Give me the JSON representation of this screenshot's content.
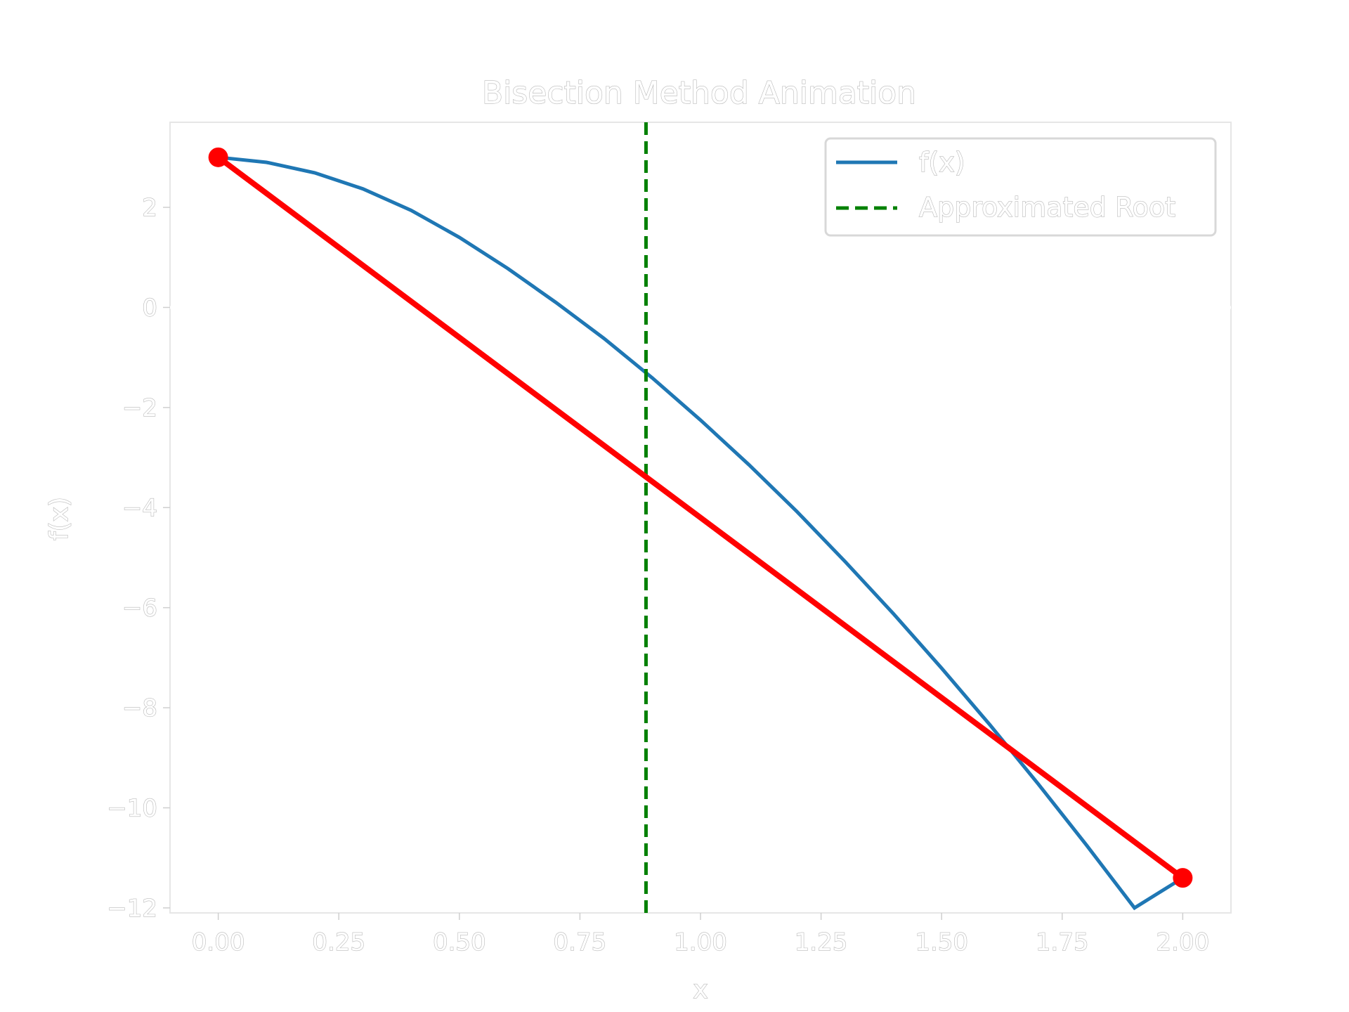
{
  "chart_data": {
    "type": "line",
    "title": "Bisection Method Animation",
    "xlabel": "x",
    "ylabel": "f(x)",
    "xlim": [
      -0.1,
      2.1
    ],
    "ylim": [
      -12.1,
      3.7
    ],
    "xticks": [
      "0.00",
      "0.25",
      "0.50",
      "0.75",
      "1.00",
      "1.25",
      "1.50",
      "1.75",
      "2.00"
    ],
    "yticks": [
      "2",
      "0",
      "−2",
      "−4",
      "−6",
      "−8",
      "−10",
      "−12"
    ],
    "grid": false,
    "legend_position": "top-right",
    "series": [
      {
        "name": "f(x)",
        "color": "#1f77b4",
        "style": "solid",
        "x": [
          0,
          0.1,
          0.2,
          0.3,
          0.4,
          0.5,
          0.6,
          0.7,
          0.8,
          0.9,
          1.0,
          1.1,
          1.2,
          1.3,
          1.4,
          1.5,
          1.6,
          1.7,
          1.8,
          1.9,
          2.0
        ],
        "y": [
          3.0,
          2.9,
          2.69,
          2.37,
          1.94,
          1.4,
          0.78,
          0.1,
          -0.62,
          -1.41,
          -2.25,
          -3.14,
          -4.08,
          -5.08,
          -6.12,
          -7.21,
          -8.34,
          -9.52,
          -10.74,
          -12.0,
          -11.4
        ]
      },
      {
        "name": "Approximated Root",
        "color": "#008000",
        "style": "dashed",
        "vline_x": 0.887
      },
      {
        "color": "#ff0000",
        "style": "solid-with-markers",
        "x": [
          0,
          2.0
        ],
        "y": [
          3.0,
          -11.4
        ]
      }
    ],
    "hline_y": 0,
    "hline_color": "#ffffff"
  }
}
